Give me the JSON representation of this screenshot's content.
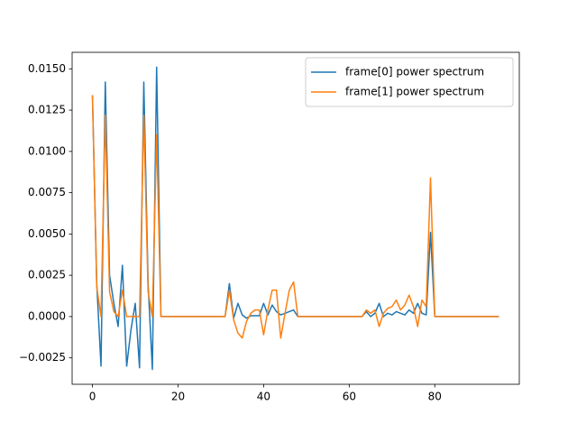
{
  "chart_data": {
    "type": "line",
    "x": [
      0,
      1,
      2,
      3,
      4,
      5,
      6,
      7,
      8,
      9,
      10,
      11,
      12,
      13,
      14,
      15,
      16,
      17,
      18,
      19,
      20,
      21,
      22,
      23,
      24,
      25,
      26,
      27,
      28,
      29,
      30,
      31,
      32,
      33,
      34,
      35,
      36,
      37,
      38,
      39,
      40,
      41,
      42,
      43,
      44,
      45,
      46,
      47,
      48,
      49,
      50,
      51,
      52,
      53,
      54,
      55,
      56,
      57,
      58,
      59,
      60,
      61,
      62,
      63,
      64,
      65,
      66,
      67,
      68,
      69,
      70,
      71,
      72,
      73,
      74,
      75,
      76,
      77,
      78,
      79,
      80,
      81,
      82,
      83,
      84,
      85,
      86,
      87,
      88,
      89,
      90,
      91,
      92,
      93,
      94,
      95
    ],
    "series": [
      {
        "name": "frame[0] power spectrum",
        "color": "#1f77b4",
        "values": [
          0.0134,
          0.002,
          -0.003,
          0.0142,
          0.0025,
          0.0008,
          -0.0006,
          0.0031,
          -0.003,
          -0.0008,
          0.0008,
          -0.0031,
          0.0142,
          0.002,
          -0.0032,
          0.0151,
          0,
          0,
          0,
          0,
          0,
          0,
          0,
          0,
          0,
          0,
          0,
          0,
          0,
          0,
          0,
          0,
          0.002,
          -0.0001,
          0.0008,
          0.0001,
          -0.0001,
          5e-05,
          5e-05,
          5e-05,
          0.0008,
          0.0001,
          0.0007,
          0.0003,
          0.0001,
          0.0002,
          0.0003,
          0.0004,
          0,
          0,
          0,
          0,
          0,
          0,
          0,
          0,
          0,
          0,
          0,
          0,
          0,
          0,
          0,
          0,
          0.0003,
          0,
          0.0002,
          0.0008,
          0,
          0.0002,
          0.0001,
          0.0003,
          0.0002,
          0.0001,
          0.0004,
          0.0002,
          0.0008,
          0.0002,
          0.0001,
          0.0051,
          0,
          0,
          0,
          0,
          0,
          0,
          0,
          0,
          0,
          0,
          0,
          0,
          0,
          0,
          0,
          0
        ]
      },
      {
        "name": "frame[1] power spectrum",
        "color": "#ff7f0e",
        "values": [
          0.0134,
          0.0018,
          0,
          0.0122,
          0.0015,
          0.0003,
          0,
          0.0016,
          0,
          0,
          0,
          0,
          0.0122,
          0.0015,
          0,
          0.011,
          0,
          0,
          0,
          0,
          0,
          0,
          0,
          0,
          0,
          0,
          0,
          0,
          0,
          0,
          0,
          0,
          0.0016,
          -0.0002,
          -0.001,
          -0.0013,
          -0.0003,
          0.0002,
          0.0004,
          0.0004,
          -0.0011,
          0.0004,
          0.0016,
          0.0016,
          -0.0013,
          0.0002,
          0.0016,
          0.0021,
          0,
          0,
          0,
          0,
          0,
          0,
          0,
          0,
          0,
          0,
          0,
          0,
          0,
          0,
          0,
          0,
          0.0004,
          0.0002,
          0.0004,
          -0.0006,
          0.0002,
          0.0005,
          0.0006,
          0.001,
          0.0004,
          0.0007,
          0.0013,
          0.0006,
          -0.0006,
          0.001,
          0.0006,
          0.0084,
          0,
          0,
          0,
          0,
          0,
          0,
          0,
          0,
          0,
          0,
          0,
          0,
          0,
          0,
          0,
          0
        ]
      }
    ],
    "xlim": [
      -4.75,
      99.75
    ],
    "xticks": [
      0,
      20,
      40,
      60,
      80
    ],
    "ylim": [
      -0.0041,
      0.016
    ],
    "yticks": [
      {
        "value": -0.0025,
        "label": "−0.0025"
      },
      {
        "value": 0,
        "label": "0.0000"
      },
      {
        "value": 0.0025,
        "label": "0.0025"
      },
      {
        "value": 0.005,
        "label": "0.0050"
      },
      {
        "value": 0.0075,
        "label": "0.0075"
      },
      {
        "value": 0.01,
        "label": "0.0100"
      },
      {
        "value": 0.0125,
        "label": "0.0125"
      },
      {
        "value": 0.015,
        "label": "0.0150"
      }
    ],
    "legend": "upper right"
  }
}
